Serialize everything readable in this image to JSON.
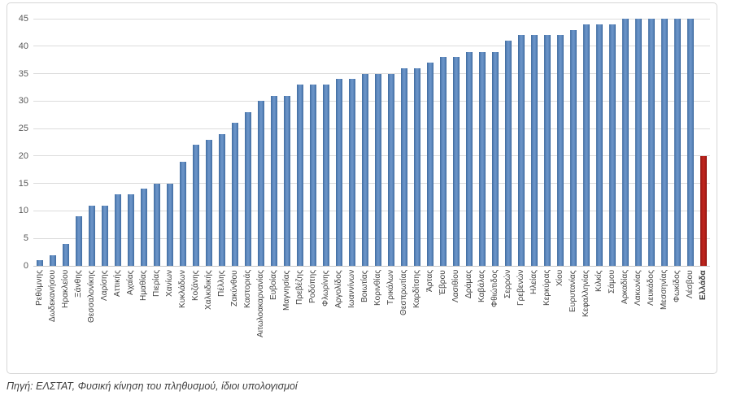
{
  "chart_data": {
    "type": "bar",
    "title": "",
    "xlabel": "",
    "ylabel": "",
    "ylim": [
      0,
      45
    ],
    "ytick_step": 5,
    "yticks": [
      0,
      5,
      10,
      15,
      20,
      25,
      30,
      35,
      40,
      45
    ],
    "grid": true,
    "legend": "none",
    "bar_color": "#4f81bd",
    "highlight_color": "#b4211a",
    "gridline_color": "#dcdcdc",
    "highlight_category": "Ελλάδα",
    "categories": [
      "Ρεθύμνης",
      "Δωδεκανήσου",
      "Ηρακλείου",
      "Ξάνθης",
      "Θεσσαλονίκης",
      "Λαρίσης",
      "Αττικής",
      "Αχαίας",
      "Ημαθίας",
      "Πιερίας",
      "Χανίων",
      "Κυκλάδων",
      "Κοζάνης",
      "Χαλκιδικής",
      "Πέλλης",
      "Ζακύνθου",
      "Καστοριάς",
      "Αιτωλοακαρνανίας",
      "Ευβοίας",
      "Μαγνησίας",
      "Πρεβέζης",
      "Ροδόπης",
      "Φλωρίνης",
      "Αργολίδος",
      "Ιωαννίνων",
      "Βοιωτίας",
      "Κορινθίας",
      "Τρικάλων",
      "Θεσπρωτίας",
      "Καρδίτσης",
      "Άρτας",
      "Έβρου",
      "Λασιθίου",
      "Δράμας",
      "Καβάλας",
      "Φθιώτιδος",
      "Σερρών",
      "Γρεβενών",
      "Ηλείας",
      "Κερκύρας",
      "Χίου",
      "Ευρυτανίας",
      "Κεφαλληνίας",
      "Κιλκίς",
      "Σάμου",
      "Αρκαδίας",
      "Λακωνίας",
      "Λευκάδος",
      "Μεσσηνίας",
      "Φωκίδος",
      "Λέσβου",
      "Ελλάδα"
    ],
    "values": [
      1,
      2,
      4,
      9,
      11,
      11,
      13,
      13,
      14,
      15,
      15,
      19,
      22,
      23,
      24,
      26,
      28,
      30,
      31,
      31,
      33,
      33,
      33,
      34,
      34,
      35,
      35,
      35,
      36,
      36,
      37,
      38,
      38,
      39,
      39,
      39,
      41,
      42,
      42,
      42,
      42,
      43,
      44,
      44,
      44,
      45,
      45,
      45,
      45,
      45,
      45,
      20
    ]
  },
  "source_note": "Πηγή: ΕΛΣΤΑΤ, Φυσική κίνηση του πληθυσμού, ίδιοι υπολογισμοί"
}
